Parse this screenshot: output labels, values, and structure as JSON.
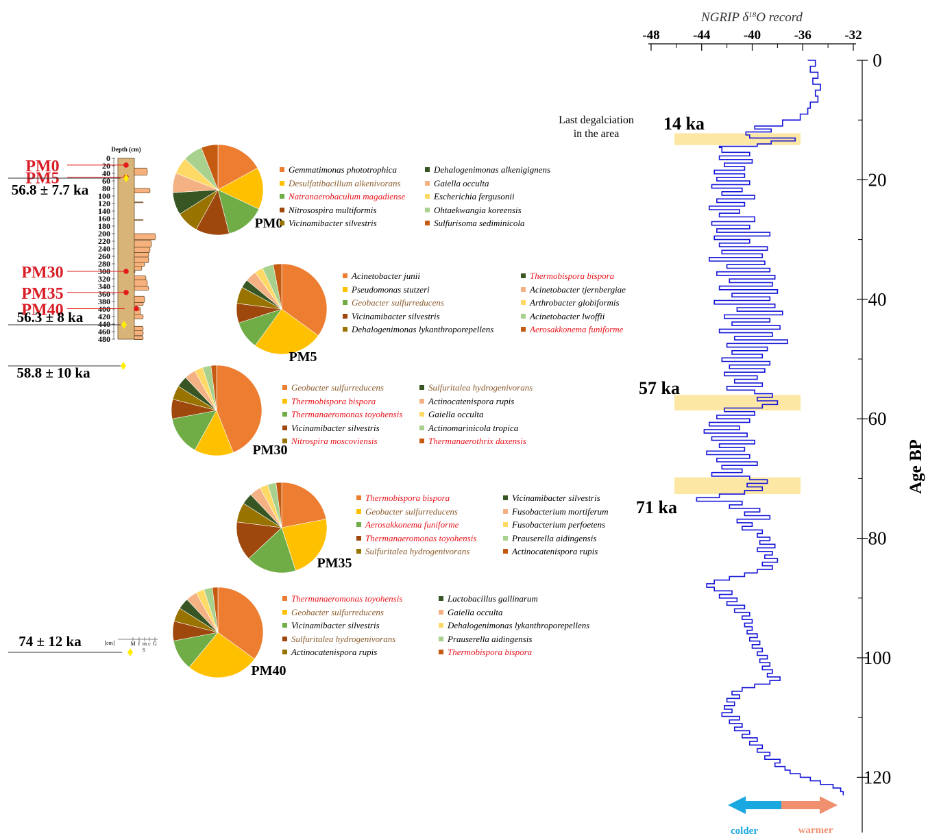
{
  "colors": {
    "ngrip_line": "#1414d8",
    "highlight": "#fde7a4",
    "column_fill": "#d9b478",
    "sand_fill": "#f7b17d",
    "sample_dot": "#e31b1b",
    "age_dot": "#ffee00",
    "sample_label": "#d91e27",
    "colder": "#1aa8e0",
    "warmer": "#f0906f",
    "red_species": "#e8141c",
    "brown_species": "#8b5a2b"
  },
  "column": {
    "title": "Depth (cm)",
    "unit": "[cm]",
    "depth_ticks": [
      0,
      20,
      40,
      60,
      80,
      100,
      120,
      140,
      160,
      180,
      200,
      220,
      240,
      260,
      280,
      300,
      320,
      340,
      360,
      380,
      400,
      420,
      440,
      460,
      480
    ],
    "grain_labels": [
      "M",
      "f",
      "m",
      "c",
      "G"
    ],
    "grain_group": "S",
    "samples": [
      {
        "label": "PM0",
        "depth": 18
      },
      {
        "label": "PM5",
        "depth": 50
      },
      {
        "label": "PM30",
        "depth": 300
      },
      {
        "label": "PM35",
        "depth": 356
      },
      {
        "label": "PM40",
        "depth": 399
      }
    ],
    "ages": [
      {
        "label": "56.8 ± 7.7 ka",
        "depth": 36
      },
      {
        "label": "56.3 ± 8 ka",
        "depth": 160
      },
      {
        "label": "58.8 ± 10 ka",
        "depth": 204
      },
      {
        "label": "74 ± 12 ka",
        "depth": 480
      }
    ]
  },
  "ngrip": {
    "title": "NGRIP δ18O record",
    "title_main": "NGRIP δ",
    "title_sup": "18",
    "title_end": "O record",
    "x_ticks": [
      -48,
      -44,
      -40,
      -36,
      -32
    ],
    "x_tick_labels": [
      "-48",
      "-44",
      "-40",
      "-36",
      "-32"
    ],
    "xlim": [
      -48,
      -32
    ],
    "y_ticks": [
      0,
      20,
      40,
      60,
      80,
      100,
      120
    ],
    "ylim": [
      0,
      128
    ],
    "ylabel": "Age BP",
    "annotation": [
      "Last degalciation",
      "in the area"
    ],
    "events": [
      {
        "label": "14 ka",
        "y0": 12.2,
        "y1": 14.2
      },
      {
        "label": "57 ka",
        "y0": 56.0,
        "y1": 58.6
      },
      {
        "label": "71 ka",
        "y0": 69.8,
        "y1": 72.6
      }
    ],
    "arrow_left": "colder",
    "arrow_right": "warmer"
  },
  "chart_data": [
    {
      "type": "line",
      "title": "NGRIP δ18O record",
      "ylabel": "Age BP",
      "xlim": [
        -48,
        -32
      ],
      "ylim": [
        0,
        128
      ],
      "points": [
        [
          -35.6,
          0
        ],
        [
          -35.0,
          1
        ],
        [
          -35.4,
          2
        ],
        [
          -34.8,
          3
        ],
        [
          -35.2,
          4
        ],
        [
          -34.6,
          5
        ],
        [
          -35.0,
          6
        ],
        [
          -34.8,
          7
        ],
        [
          -35.4,
          8
        ],
        [
          -35.6,
          9
        ],
        [
          -36.2,
          10
        ],
        [
          -37.6,
          11
        ],
        [
          -39.8,
          11.5
        ],
        [
          -38.5,
          12
        ],
        [
          -40.5,
          12.5
        ],
        [
          -40.2,
          13
        ],
        [
          -36.6,
          13.5
        ],
        [
          -38.5,
          14
        ],
        [
          -39.6,
          14.4
        ],
        [
          -42.6,
          14.6
        ],
        [
          -42.4,
          15.4
        ],
        [
          -40.2,
          16
        ],
        [
          -42.6,
          16.6
        ],
        [
          -40.0,
          17.2
        ],
        [
          -42.2,
          17.8
        ],
        [
          -40.6,
          18.4
        ],
        [
          -43.0,
          19
        ],
        [
          -40.6,
          19.6
        ],
        [
          -42.8,
          20.2
        ],
        [
          -40.2,
          20.8
        ],
        [
          -43.2,
          21.4
        ],
        [
          -40.8,
          22
        ],
        [
          -42.4,
          22.6
        ],
        [
          -39.8,
          23.2
        ],
        [
          -42.8,
          23.8
        ],
        [
          -40.6,
          24.4
        ],
        [
          -43.4,
          25
        ],
        [
          -41.0,
          25.6
        ],
        [
          -42.6,
          26.2
        ],
        [
          -39.8,
          27
        ],
        [
          -43.2,
          27.6
        ],
        [
          -40.2,
          28.2
        ],
        [
          -42.8,
          28.8
        ],
        [
          -38.6,
          29.4
        ],
        [
          -43.0,
          30
        ],
        [
          -40.2,
          30.6
        ],
        [
          -42.6,
          31.2
        ],
        [
          -38.8,
          31.8
        ],
        [
          -42.4,
          32.4
        ],
        [
          -39.2,
          33
        ],
        [
          -43.4,
          33.6
        ],
        [
          -39.0,
          34.2
        ],
        [
          -42.0,
          34.8
        ],
        [
          -38.6,
          35.4
        ],
        [
          -42.8,
          36
        ],
        [
          -38.2,
          36.6
        ],
        [
          -41.8,
          37.2
        ],
        [
          -38.4,
          37.8
        ],
        [
          -42.6,
          38.4
        ],
        [
          -38.0,
          39
        ],
        [
          -41.6,
          39.6
        ],
        [
          -38.6,
          40.2
        ],
        [
          -43.0,
          40.8
        ],
        [
          -38.2,
          41.4
        ],
        [
          -41.2,
          42
        ],
        [
          -37.6,
          42.6
        ],
        [
          -42.2,
          43.2
        ],
        [
          -38.6,
          43.8
        ],
        [
          -41.6,
          44.4
        ],
        [
          -37.8,
          45
        ],
        [
          -42.6,
          45.6
        ],
        [
          -38.4,
          46.2
        ],
        [
          -41.4,
          46.8
        ],
        [
          -37.2,
          47.4
        ],
        [
          -42.0,
          48
        ],
        [
          -38.8,
          48.6
        ],
        [
          -41.6,
          49.2
        ],
        [
          -39.2,
          49.8
        ],
        [
          -42.4,
          50.4
        ],
        [
          -38.6,
          51
        ],
        [
          -41.8,
          51.6
        ],
        [
          -39.0,
          52.2
        ],
        [
          -42.2,
          52.8
        ],
        [
          -39.6,
          53.4
        ],
        [
          -41.4,
          54
        ],
        [
          -39.2,
          54.6
        ],
        [
          -42.0,
          55.2
        ],
        [
          -39.8,
          55.8
        ],
        [
          -38.4,
          56.4
        ],
        [
          -39.6,
          57
        ],
        [
          -38.0,
          57.6
        ],
        [
          -39.2,
          58.2
        ],
        [
          -42.2,
          58.8
        ],
        [
          -39.8,
          59.4
        ],
        [
          -42.8,
          60
        ],
        [
          -40.2,
          60.6
        ],
        [
          -43.4,
          61.2
        ],
        [
          -41.0,
          61.8
        ],
        [
          -43.8,
          62.4
        ],
        [
          -40.4,
          63
        ],
        [
          -43.2,
          63.6
        ],
        [
          -39.8,
          64.2
        ],
        [
          -42.6,
          64.8
        ],
        [
          -40.6,
          65.4
        ],
        [
          -43.6,
          66
        ],
        [
          -40.2,
          66.6
        ],
        [
          -42.8,
          67.2
        ],
        [
          -39.6,
          67.8
        ],
        [
          -42.4,
          68.4
        ],
        [
          -40.8,
          69
        ],
        [
          -43.2,
          69.6
        ],
        [
          -40.2,
          70.2
        ],
        [
          -38.8,
          70.8
        ],
        [
          -40.4,
          71.4
        ],
        [
          -39.2,
          72
        ],
        [
          -40.6,
          72.6
        ],
        [
          -42.6,
          73.2
        ],
        [
          -44.4,
          73.8
        ],
        [
          -40.8,
          74.4
        ],
        [
          -41.8,
          75
        ],
        [
          -39.4,
          75.6
        ],
        [
          -40.6,
          76.2
        ],
        [
          -38.6,
          76.8
        ],
        [
          -41.2,
          77.4
        ],
        [
          -40.0,
          78
        ],
        [
          -40.8,
          78.6
        ],
        [
          -39.2,
          79.2
        ],
        [
          -39.6,
          79.8
        ],
        [
          -38.6,
          80.4
        ],
        [
          -39.4,
          81
        ],
        [
          -38.2,
          81.6
        ],
        [
          -39.6,
          82.2
        ],
        [
          -38.4,
          82.8
        ],
        [
          -39.0,
          83.4
        ],
        [
          -38.0,
          84
        ],
        [
          -39.2,
          84.6
        ],
        [
          -38.4,
          85.2
        ],
        [
          -39.6,
          85.8
        ],
        [
          -40.6,
          86.4
        ],
        [
          -41.8,
          87
        ],
        [
          -43.0,
          87.6
        ],
        [
          -43.6,
          88.2
        ],
        [
          -43.0,
          88.8
        ],
        [
          -41.6,
          89.4
        ],
        [
          -42.6,
          90
        ],
        [
          -41.2,
          90.6
        ],
        [
          -42.0,
          91.2
        ],
        [
          -40.6,
          91.8
        ],
        [
          -41.4,
          92.4
        ],
        [
          -40.2,
          93
        ],
        [
          -40.8,
          93.6
        ],
        [
          -40.0,
          94.2
        ],
        [
          -40.6,
          94.8
        ],
        [
          -40.0,
          95.4
        ],
        [
          -40.4,
          96
        ],
        [
          -39.6,
          96.6
        ],
        [
          -40.2,
          97.2
        ],
        [
          -39.4,
          97.8
        ],
        [
          -40.0,
          98.4
        ],
        [
          -39.2,
          99
        ],
        [
          -39.6,
          99.6
        ],
        [
          -38.8,
          100.2
        ],
        [
          -39.4,
          100.8
        ],
        [
          -38.6,
          101.4
        ],
        [
          -39.2,
          102
        ],
        [
          -38.4,
          102.6
        ],
        [
          -38.8,
          103.2
        ],
        [
          -37.8,
          103.8
        ],
        [
          -38.6,
          104.4
        ],
        [
          -39.8,
          105
        ],
        [
          -40.8,
          105.6
        ],
        [
          -41.6,
          106.2
        ],
        [
          -41.0,
          106.8
        ],
        [
          -42.0,
          107.4
        ],
        [
          -41.4,
          108
        ],
        [
          -42.2,
          108.6
        ],
        [
          -41.6,
          109.2
        ],
        [
          -42.4,
          109.8
        ],
        [
          -41.0,
          110.4
        ],
        [
          -41.8,
          111
        ],
        [
          -40.8,
          111.6
        ],
        [
          -41.4,
          112.2
        ],
        [
          -40.2,
          112.8
        ],
        [
          -40.8,
          113.4
        ],
        [
          -39.6,
          114
        ],
        [
          -40.2,
          114.6
        ],
        [
          -39.2,
          115.2
        ],
        [
          -39.6,
          115.8
        ],
        [
          -38.6,
          116.4
        ],
        [
          -39.0,
          117
        ],
        [
          -37.8,
          117.6
        ],
        [
          -38.2,
          118.2
        ],
        [
          -37.4,
          118.8
        ],
        [
          -37.0,
          119.4
        ],
        [
          -36.2,
          120
        ],
        [
          -35.4,
          120.6
        ],
        [
          -34.6,
          121.2
        ],
        [
          -33.6,
          121.8
        ],
        [
          -33.0,
          122.4
        ],
        [
          -32.8,
          123
        ]
      ]
    },
    {
      "type": "pie",
      "title": "PM0",
      "labels": [
        "Gemmatimonas phototrophica",
        "Desulfatibacillum alkenivorans",
        "Natranaerobaculum magadiense",
        "Nitrosospira multiformis",
        "Vicinamibacter silvestris",
        "Dehalogenimonas alkenigignens",
        "Gaiella occulta",
        "Escherichia fergusonii",
        "Ohtaekwangia koreensis",
        "Sulfurisoma sediminicola"
      ],
      "values": [
        17,
        15,
        14,
        12,
        8,
        8,
        7,
        6,
        7,
        6
      ],
      "colors": [
        "#ed7d31",
        "#ffc000",
        "#70ad47",
        "#9e480e",
        "#997300",
        "#375623",
        "#f4b183",
        "#ffd966",
        "#a9d18e",
        "#c55a11"
      ],
      "text_colors": [
        "#000000",
        "#8b5a2b",
        "#e8141c",
        "#000000",
        "#000000",
        "#000000",
        "#000000",
        "#000000",
        "#000000",
        "#000000"
      ]
    },
    {
      "type": "pie",
      "title": "PM5",
      "labels": [
        "Acinetobacter junii",
        "Pseudomonas stutzeri",
        "Geobacter sulfurreducens",
        "Vicinamibacter silvestris",
        "Dehalogenimonas lykanthroporepellens",
        "Thermobispora bispora",
        "Acinetobacter tjernbergiae",
        "Arthrobacter globiformis",
        "Acinetobacter lwoffii",
        "Aerosakkonema funiforme"
      ],
      "values": [
        35,
        25,
        10,
        7,
        6,
        3,
        4,
        3,
        4,
        3
      ],
      "colors": [
        "#ed7d31",
        "#ffc000",
        "#70ad47",
        "#9e480e",
        "#997300",
        "#375623",
        "#f4b183",
        "#ffd966",
        "#a9d18e",
        "#c55a11"
      ],
      "text_colors": [
        "#000000",
        "#000000",
        "#8b5a2b",
        "#000000",
        "#000000",
        "#e8141c",
        "#000000",
        "#000000",
        "#000000",
        "#e8141c"
      ]
    },
    {
      "type": "pie",
      "title": "PM30",
      "labels": [
        "Geobacter sulfurreducens",
        "Thermobispora bispora",
        "Thermanaeromonas toyohensis",
        "Vicinamibacter silvestris",
        "Nitrospira moscoviensis",
        "Sulfuritalea hydrogenivorans",
        "Actinocatenispora rupis",
        "Gaiella occulta",
        "Actinomarinicola tropica",
        "Thermanaerothrix daxensis"
      ],
      "values": [
        44,
        14,
        14,
        7,
        5,
        4,
        4,
        3,
        3,
        2
      ],
      "colors": [
        "#ed7d31",
        "#ffc000",
        "#70ad47",
        "#9e480e",
        "#997300",
        "#375623",
        "#f4b183",
        "#ffd966",
        "#a9d18e",
        "#c55a11"
      ],
      "text_colors": [
        "#8b5a2b",
        "#e8141c",
        "#e8141c",
        "#000000",
        "#e8141c",
        "#8b5a2b",
        "#000000",
        "#000000",
        "#000000",
        "#e8141c"
      ]
    },
    {
      "type": "pie",
      "title": "PM35",
      "labels": [
        "Thermobispora bispora",
        "Geobacter sulfurreducens",
        "Aerosakkonema funiforme",
        "Thermanaeromonas toyohensis",
        "Sulfuritalea hydrogenivorans",
        "Vicinamibacter silvestris",
        "Fusobacterium mortiferum",
        "Fusobacterium perfoetens",
        "Prauserella aidingensis",
        "Actinocatenispora rupis"
      ],
      "values": [
        22,
        23,
        18,
        14,
        7,
        4,
        4,
        3,
        3,
        2
      ],
      "colors": [
        "#ed7d31",
        "#ffc000",
        "#70ad47",
        "#9e480e",
        "#997300",
        "#375623",
        "#f4b183",
        "#ffd966",
        "#a9d18e",
        "#c55a11"
      ],
      "text_colors": [
        "#e8141c",
        "#8b5a2b",
        "#e8141c",
        "#e8141c",
        "#8b5a2b",
        "#000000",
        "#000000",
        "#000000",
        "#000000",
        "#000000"
      ]
    },
    {
      "type": "pie",
      "title": "PM40",
      "labels": [
        "Thermanaeromonas toyohensis",
        "Geobacter sulfurreducens",
        "Vicinamibacter silvestris",
        "Sulfuritalea hydrogenivorans",
        "Actinocatenispora rupis",
        "Lactobacillus gallinarum",
        "Gaiella occulta",
        "Dehalogenimonas lykanthroporepellens",
        "Prauserella aidingensis",
        "Thermobispora bispora"
      ],
      "values": [
        35,
        26,
        11,
        7,
        5,
        4,
        4,
        3,
        3,
        2
      ],
      "colors": [
        "#ed7d31",
        "#ffc000",
        "#70ad47",
        "#9e480e",
        "#997300",
        "#375623",
        "#f4b183",
        "#ffd966",
        "#a9d18e",
        "#c55a11"
      ],
      "text_colors": [
        "#e8141c",
        "#8b5a2b",
        "#000000",
        "#8b5a2b",
        "#000000",
        "#000000",
        "#000000",
        "#000000",
        "#000000",
        "#e8141c"
      ]
    }
  ]
}
